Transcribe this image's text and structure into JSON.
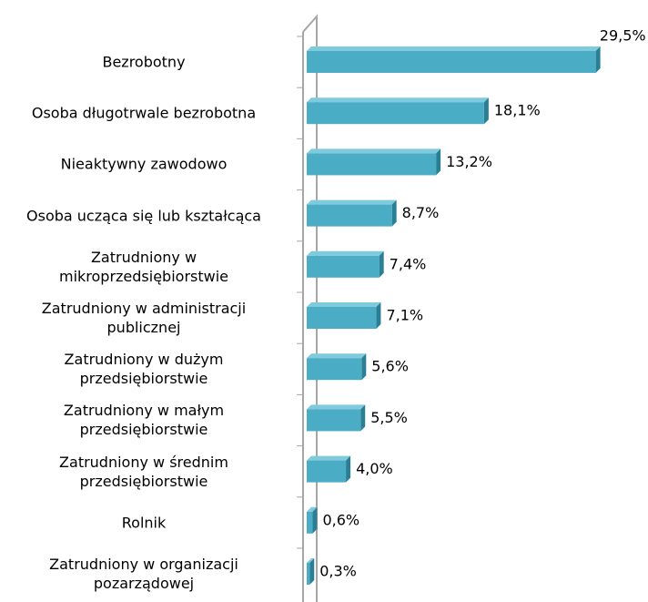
{
  "chart_data": {
    "type": "bar",
    "orientation": "horizontal",
    "categories": [
      "Bezrobotny",
      "Osoba długotrwale bezrobotna",
      "Nieaktywny zawodowo",
      "Osoba ucząca się lub kształcąca",
      "Zatrudniony w\nmikroprzedsiębiorstwie",
      "Zatrudniony w administracji\npublicznej",
      "Zatrudniony w dużym\nprzedsiębiorstwie",
      "Zatrudniony w małym\nprzedsiębiorstwie",
      "Zatrudniony w średnim\nprzedsiębiorstwie",
      "Rolnik",
      "Zatrudniony w organizacji\npozarządowej"
    ],
    "values": [
      29.5,
      18.1,
      13.2,
      8.7,
      7.4,
      7.1,
      5.6,
      5.5,
      4.0,
      0.6,
      0.3
    ],
    "value_labels": [
      "29,5%",
      "18,1%",
      "13,2%",
      "8,7%",
      "7,4%",
      "7,1%",
      "5,6%",
      "5,5%",
      "4,0%",
      "0,6%",
      "0,3%"
    ],
    "color": "#4bacc6",
    "xlim": [
      0,
      30
    ]
  }
}
